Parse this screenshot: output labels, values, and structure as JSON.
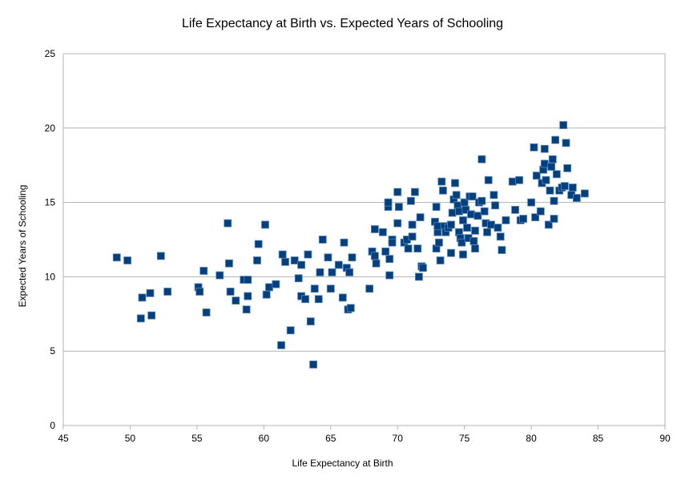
{
  "chart_data": {
    "type": "scatter",
    "title": "Life Expectancy at Birth vs. Expected Years of Schooling",
    "xlabel": "Life Expectancy at Birth",
    "ylabel": "Expected Years of Schooling",
    "xlim": [
      45,
      90
    ],
    "ylim": [
      0,
      25
    ],
    "xticks": [
      45,
      50,
      55,
      60,
      65,
      70,
      75,
      80,
      85,
      90
    ],
    "yticks": [
      0,
      5,
      10,
      15,
      20,
      25
    ],
    "grid": "horizontal",
    "legend": "none",
    "marker": "square",
    "colors": {
      "marker": "#003f80",
      "grid": "#b3b3b3",
      "axis": "#b3b3b3"
    },
    "points": [
      [
        49.0,
        11.3
      ],
      [
        49.8,
        11.1
      ],
      [
        50.8,
        7.2
      ],
      [
        50.9,
        8.6
      ],
      [
        51.5,
        8.9
      ],
      [
        51.6,
        7.4
      ],
      [
        52.3,
        11.4
      ],
      [
        52.8,
        9.0
      ],
      [
        55.1,
        9.3
      ],
      [
        55.2,
        9.0
      ],
      [
        55.5,
        10.4
      ],
      [
        55.7,
        7.6
      ],
      [
        56.7,
        10.1
      ],
      [
        57.3,
        13.6
      ],
      [
        57.4,
        10.9
      ],
      [
        57.5,
        9.0
      ],
      [
        57.9,
        8.4
      ],
      [
        58.5,
        9.8
      ],
      [
        58.7,
        7.8
      ],
      [
        58.8,
        8.7
      ],
      [
        58.8,
        9.8
      ],
      [
        59.5,
        11.1
      ],
      [
        59.6,
        12.2
      ],
      [
        60.1,
        13.5
      ],
      [
        60.2,
        8.8
      ],
      [
        60.4,
        9.3
      ],
      [
        60.9,
        9.5
      ],
      [
        61.3,
        5.4
      ],
      [
        61.4,
        11.5
      ],
      [
        61.6,
        11.0
      ],
      [
        62.0,
        6.4
      ],
      [
        62.3,
        11.1
      ],
      [
        62.6,
        9.9
      ],
      [
        62.8,
        8.7
      ],
      [
        62.8,
        10.8
      ],
      [
        63.1,
        8.5
      ],
      [
        63.3,
        11.5
      ],
      [
        63.5,
        7.0
      ],
      [
        63.7,
        4.1
      ],
      [
        63.8,
        9.2
      ],
      [
        64.1,
        8.5
      ],
      [
        64.2,
        10.3
      ],
      [
        64.4,
        12.5
      ],
      [
        64.8,
        11.3
      ],
      [
        65.0,
        9.2
      ],
      [
        65.1,
        10.3
      ],
      [
        65.6,
        10.8
      ],
      [
        65.9,
        8.6
      ],
      [
        66.0,
        12.3
      ],
      [
        66.2,
        10.6
      ],
      [
        66.3,
        7.8
      ],
      [
        66.4,
        10.3
      ],
      [
        66.5,
        7.9
      ],
      [
        66.6,
        11.3
      ],
      [
        67.9,
        9.2
      ],
      [
        68.1,
        11.7
      ],
      [
        68.3,
        11.4
      ],
      [
        68.3,
        13.2
      ],
      [
        68.4,
        10.9
      ],
      [
        68.9,
        13.0
      ],
      [
        69.1,
        11.7
      ],
      [
        69.3,
        14.7
      ],
      [
        69.3,
        15.0
      ],
      [
        69.4,
        10.1
      ],
      [
        69.4,
        11.2
      ],
      [
        69.6,
        12.5
      ],
      [
        69.6,
        12.3
      ],
      [
        70.0,
        15.7
      ],
      [
        70.0,
        13.6
      ],
      [
        70.1,
        14.7
      ],
      [
        70.5,
        12.3
      ],
      [
        70.7,
        12.5
      ],
      [
        70.8,
        11.9
      ],
      [
        71.0,
        15.1
      ],
      [
        71.1,
        12.7
      ],
      [
        71.1,
        13.5
      ],
      [
        71.3,
        15.7
      ],
      [
        71.5,
        11.9
      ],
      [
        71.6,
        10.0
      ],
      [
        71.7,
        14.0
      ],
      [
        71.8,
        10.7
      ],
      [
        71.9,
        10.6
      ],
      [
        72.8,
        13.7
      ],
      [
        72.9,
        14.7
      ],
      [
        72.9,
        11.9
      ],
      [
        73.0,
        13.0
      ],
      [
        73.0,
        13.4
      ],
      [
        73.1,
        12.3
      ],
      [
        73.2,
        11.1
      ],
      [
        73.3,
        16.4
      ],
      [
        73.4,
        15.8
      ],
      [
        73.5,
        13.4
      ],
      [
        73.6,
        13.0
      ],
      [
        73.8,
        13.3
      ],
      [
        74.0,
        11.6
      ],
      [
        74.0,
        13.5
      ],
      [
        74.1,
        14.3
      ],
      [
        74.2,
        15.2
      ],
      [
        74.3,
        16.3
      ],
      [
        74.4,
        15.5
      ],
      [
        74.5,
        14.8
      ],
      [
        74.6,
        14.4
      ],
      [
        74.6,
        13.0
      ],
      [
        74.7,
        12.6
      ],
      [
        74.8,
        12.3
      ],
      [
        74.9,
        13.8
      ],
      [
        74.9,
        11.5
      ],
      [
        75.0,
        15.0
      ],
      [
        75.1,
        14.5
      ],
      [
        75.2,
        13.3
      ],
      [
        75.3,
        12.6
      ],
      [
        75.4,
        15.4
      ],
      [
        75.5,
        14.2
      ],
      [
        75.6,
        15.4
      ],
      [
        75.7,
        12.4
      ],
      [
        75.8,
        13.1
      ],
      [
        75.8,
        11.9
      ],
      [
        76.0,
        14.1
      ],
      [
        76.1,
        15.0
      ],
      [
        76.3,
        15.1
      ],
      [
        76.3,
        17.9
      ],
      [
        76.5,
        14.4
      ],
      [
        76.6,
        13.6
      ],
      [
        76.7,
        13.0
      ],
      [
        76.8,
        16.5
      ],
      [
        77.0,
        13.5
      ],
      [
        77.2,
        15.5
      ],
      [
        77.3,
        14.8
      ],
      [
        77.5,
        13.3
      ],
      [
        77.7,
        12.7
      ],
      [
        77.8,
        11.8
      ],
      [
        78.1,
        13.8
      ],
      [
        78.6,
        16.4
      ],
      [
        78.8,
        14.5
      ],
      [
        79.1,
        16.5
      ],
      [
        79.2,
        13.8
      ],
      [
        79.4,
        13.9
      ],
      [
        80.0,
        15.0
      ],
      [
        80.2,
        18.7
      ],
      [
        80.3,
        14.0
      ],
      [
        80.4,
        16.8
      ],
      [
        80.7,
        14.4
      ],
      [
        80.8,
        16.3
      ],
      [
        80.9,
        17.2
      ],
      [
        81.0,
        18.6
      ],
      [
        81.0,
        17.6
      ],
      [
        81.1,
        16.5
      ],
      [
        81.3,
        13.5
      ],
      [
        81.4,
        15.8
      ],
      [
        81.5,
        17.4
      ],
      [
        81.6,
        17.9
      ],
      [
        81.7,
        13.9
      ],
      [
        81.7,
        15.1
      ],
      [
        81.8,
        19.2
      ],
      [
        81.9,
        16.9
      ],
      [
        82.1,
        15.8
      ],
      [
        82.3,
        16.0
      ],
      [
        82.4,
        20.2
      ],
      [
        82.5,
        16.1
      ],
      [
        82.6,
        19.0
      ],
      [
        82.7,
        17.3
      ],
      [
        83.0,
        15.5
      ],
      [
        83.1,
        16.0
      ],
      [
        83.4,
        15.3
      ],
      [
        84.0,
        15.6
      ]
    ]
  }
}
